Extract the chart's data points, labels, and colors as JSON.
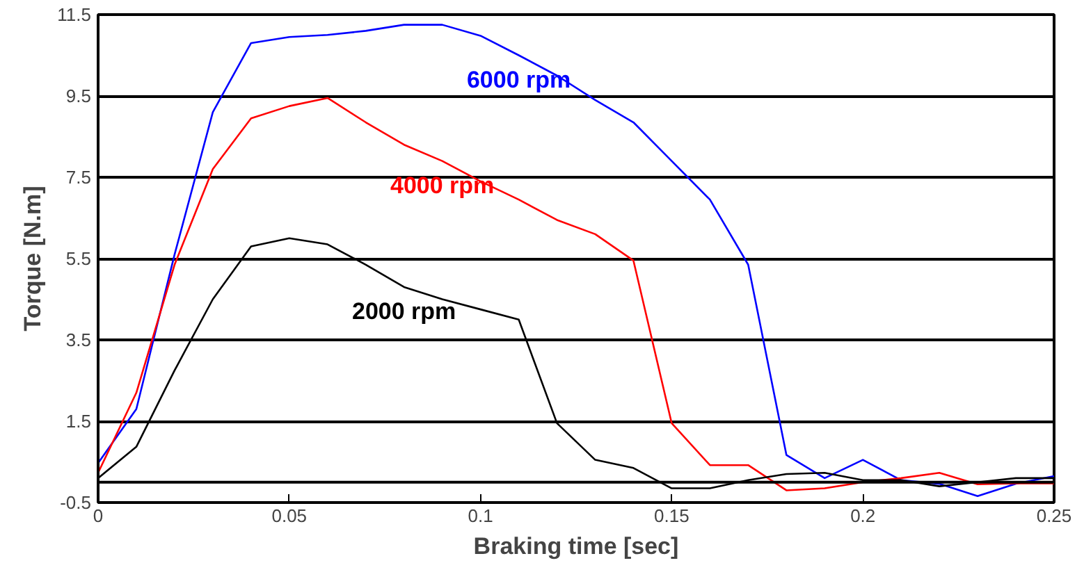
{
  "chart_data": {
    "type": "line",
    "xlabel": "Braking time [sec]",
    "ylabel": "Torque [N.m]",
    "x": [
      0,
      0.01,
      0.02,
      0.03,
      0.04,
      0.05,
      0.06,
      0.07,
      0.08,
      0.09,
      0.1,
      0.11,
      0.12,
      0.13,
      0.14,
      0.15,
      0.16,
      0.17,
      0.18,
      0.19,
      0.2,
      0.21,
      0.22,
      0.23,
      0.24,
      0.25
    ],
    "series": [
      {
        "name": "6000 rpm",
        "color": "#0000ff",
        "values": [
          0.47,
          1.8,
          5.6,
          9.1,
          10.8,
          10.95,
          11.0,
          11.1,
          11.25,
          11.25,
          10.98,
          10.5,
          10.0,
          9.4,
          8.85,
          7.9,
          6.95,
          5.35,
          0.67,
          0.1,
          0.55,
          0.05,
          -0.04,
          -0.34,
          -0.04,
          0.15
        ]
      },
      {
        "name": "4000 rpm",
        "color": "#ff0000",
        "values": [
          0.23,
          2.2,
          5.35,
          7.7,
          8.95,
          9.25,
          9.45,
          8.85,
          8.3,
          7.9,
          7.4,
          6.95,
          6.45,
          6.1,
          5.45,
          1.45,
          0.42,
          0.42,
          -0.2,
          -0.15,
          0.0,
          0.1,
          0.23,
          -0.05,
          -0.03,
          -0.03
        ]
      },
      {
        "name": "2000 rpm",
        "color": "#000000",
        "values": [
          0.1,
          0.87,
          2.75,
          4.5,
          5.8,
          6.0,
          5.85,
          5.35,
          4.8,
          4.5,
          4.25,
          4.0,
          1.45,
          0.55,
          0.35,
          -0.15,
          -0.15,
          0.05,
          0.2,
          0.23,
          0.05,
          0.05,
          -0.1,
          0.0,
          0.1,
          0.1
        ]
      }
    ],
    "xlim": [
      0,
      0.25
    ],
    "xticks": [
      0,
      0.05,
      0.1,
      0.15,
      0.2,
      0.25
    ],
    "ylim": [
      -0.5,
      11.5
    ],
    "yticks": [
      -0.5,
      1.5,
      3.5,
      5.5,
      7.5,
      9.5,
      11.5
    ],
    "grid": "y",
    "legend": false,
    "ref_lines": [
      {
        "axis": "y",
        "value": 0,
        "color": "#000000"
      }
    ]
  }
}
